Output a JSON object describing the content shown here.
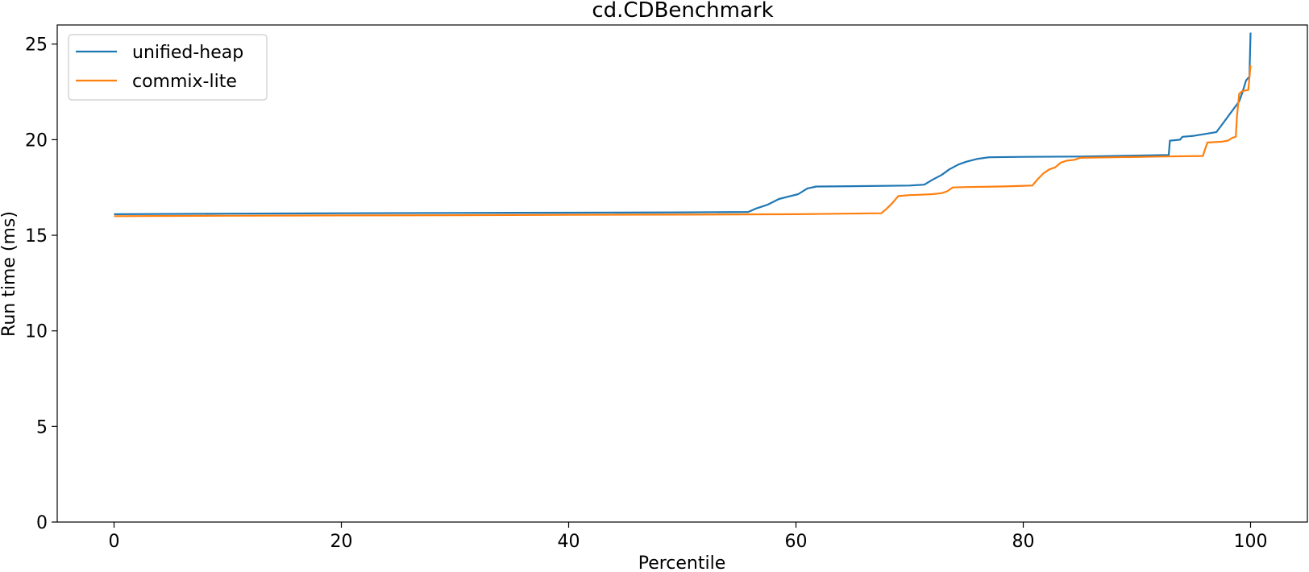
{
  "chart_data": {
    "type": "line",
    "title": "cd.CDBenchmark",
    "xlabel": "Percentile",
    "ylabel": "Run time (ms)",
    "xlim": [
      -5,
      105
    ],
    "ylim": [
      0,
      26
    ],
    "xticks": [
      0,
      20,
      40,
      60,
      80,
      100
    ],
    "yticks": [
      0,
      5,
      10,
      15,
      20,
      25
    ],
    "grid": false,
    "legend": "top-left",
    "series": [
      {
        "name": "unified-heap",
        "color": "#1f77b4",
        "points": [
          [
            0,
            16.1
          ],
          [
            10,
            16.13
          ],
          [
            20,
            16.15
          ],
          [
            30,
            16.17
          ],
          [
            40,
            16.18
          ],
          [
            50,
            16.2
          ],
          [
            55.8,
            16.22
          ],
          [
            56.5,
            16.4
          ],
          [
            57.5,
            16.6
          ],
          [
            58.5,
            16.9
          ],
          [
            59.5,
            17.05
          ],
          [
            60.2,
            17.15
          ],
          [
            61,
            17.45
          ],
          [
            61.8,
            17.55
          ],
          [
            65,
            17.57
          ],
          [
            70,
            17.6
          ],
          [
            71.3,
            17.65
          ],
          [
            72,
            17.9
          ],
          [
            72.8,
            18.15
          ],
          [
            73.5,
            18.45
          ],
          [
            74.3,
            18.7
          ],
          [
            75,
            18.85
          ],
          [
            76,
            19.0
          ],
          [
            77,
            19.08
          ],
          [
            80,
            19.1
          ],
          [
            85,
            19.12
          ],
          [
            90,
            19.17
          ],
          [
            92.8,
            19.2
          ],
          [
            92.9,
            19.95
          ],
          [
            93.8,
            20.0
          ],
          [
            94,
            20.15
          ],
          [
            95,
            20.2
          ],
          [
            96,
            20.3
          ],
          [
            97,
            20.4
          ],
          [
            97.5,
            20.8
          ],
          [
            98,
            21.2
          ],
          [
            98.5,
            21.6
          ],
          [
            99,
            22.0
          ],
          [
            99.3,
            22.5
          ],
          [
            99.6,
            23.1
          ],
          [
            99.9,
            23.3
          ],
          [
            100,
            25.6
          ]
        ]
      },
      {
        "name": "commix-lite",
        "color": "#ff7f0e",
        "points": [
          [
            0,
            16.0
          ],
          [
            10,
            16.02
          ],
          [
            20,
            16.04
          ],
          [
            30,
            16.05
          ],
          [
            40,
            16.07
          ],
          [
            50,
            16.08
          ],
          [
            60,
            16.1
          ],
          [
            67.5,
            16.15
          ],
          [
            68,
            16.4
          ],
          [
            68.5,
            16.7
          ],
          [
            69,
            17.05
          ],
          [
            70,
            17.1
          ],
          [
            71,
            17.12
          ],
          [
            72,
            17.15
          ],
          [
            72.8,
            17.2
          ],
          [
            73.3,
            17.3
          ],
          [
            73.8,
            17.5
          ],
          [
            75,
            17.52
          ],
          [
            78,
            17.55
          ],
          [
            80.8,
            17.6
          ],
          [
            81.3,
            17.95
          ],
          [
            81.8,
            18.25
          ],
          [
            82.3,
            18.45
          ],
          [
            82.8,
            18.55
          ],
          [
            83.3,
            18.8
          ],
          [
            83.8,
            18.9
          ],
          [
            84.5,
            18.95
          ],
          [
            85,
            19.05
          ],
          [
            88,
            19.08
          ],
          [
            92,
            19.12
          ],
          [
            95.8,
            19.15
          ],
          [
            96.2,
            19.85
          ],
          [
            97.5,
            19.9
          ],
          [
            98,
            19.95
          ],
          [
            98.4,
            20.1
          ],
          [
            98.7,
            20.15
          ],
          [
            98.8,
            21.2
          ],
          [
            99,
            22.4
          ],
          [
            99.3,
            22.55
          ],
          [
            99.8,
            22.6
          ],
          [
            100,
            23.9
          ]
        ]
      }
    ]
  }
}
